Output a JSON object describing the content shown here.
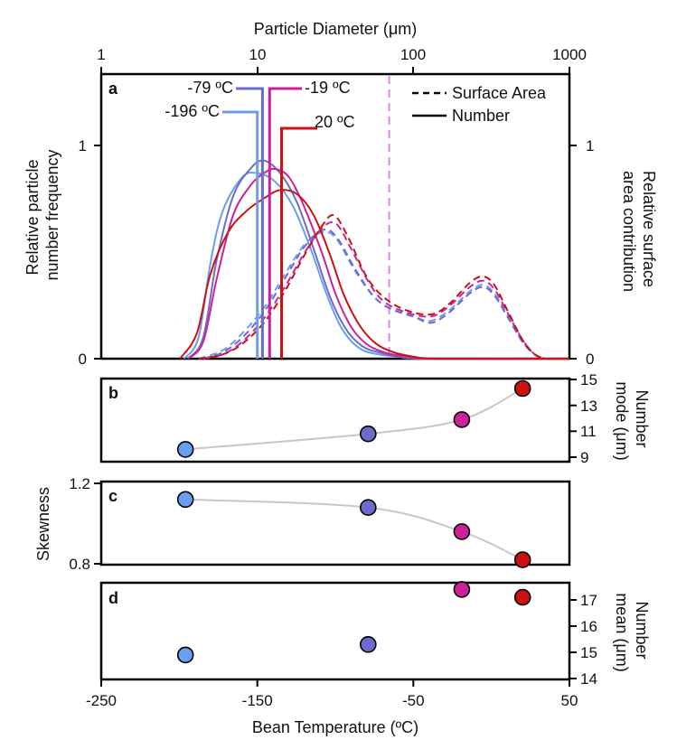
{
  "colors": {
    "c196": "#6a9ff0",
    "c79": "#6c6ccc",
    "c19": "#cc2299",
    "c20": "#cc1111",
    "fit_line": "#c8c8c8",
    "marker_line": "#dd88dd"
  },
  "chart_data": [
    {
      "panel": "a",
      "type": "line",
      "xscale": "log",
      "top_axis_label": "Particle Diameter (μm)",
      "top_ticks": [
        "1",
        "10",
        "100",
        "1000"
      ],
      "xlim": [
        1,
        1000
      ],
      "ylabel_left": "Relative particle number frequency",
      "ylabel_left_lines": [
        "Relative particle",
        "number frequency"
      ],
      "ylabel_right": "Relative surface area contribution",
      "ylabel_right_lines": [
        "Relative surface",
        "area contribution"
      ],
      "ylim": [
        0,
        1.35
      ],
      "left_ticks": [
        "0",
        "1"
      ],
      "right_ticks": [
        "0",
        "1"
      ],
      "legend": [
        {
          "label": "Surface Area",
          "style": "dashed"
        },
        {
          "label": "Number",
          "style": "solid"
        }
      ],
      "reference_line_x": 70,
      "series": [
        {
          "name": "-196 ºC",
          "color_key": "c196",
          "mode_diameter": 10,
          "number": [
            [
              3.4,
              0
            ],
            [
              4.2,
              0.1
            ],
            [
              5,
              0.45
            ],
            [
              6,
              0.7
            ],
            [
              8,
              0.86
            ],
            [
              10,
              0.88
            ],
            [
              13,
              0.84
            ],
            [
              17,
              0.72
            ],
            [
              22,
              0.52
            ],
            [
              28,
              0.3
            ],
            [
              35,
              0.14
            ],
            [
              45,
              0.05
            ],
            [
              60,
              0.02
            ],
            [
              80,
              0.01
            ],
            [
              120,
              0
            ],
            [
              1000,
              0
            ]
          ],
          "surface_area": [
            [
              4.2,
              0
            ],
            [
              6,
              0.04
            ],
            [
              8,
              0.12
            ],
            [
              11,
              0.24
            ],
            [
              15,
              0.4
            ],
            [
              20,
              0.54
            ],
            [
              26,
              0.6
            ],
            [
              32,
              0.57
            ],
            [
              42,
              0.42
            ],
            [
              55,
              0.3
            ],
            [
              70,
              0.24
            ],
            [
              100,
              0.2
            ],
            [
              130,
              0.18
            ],
            [
              170,
              0.23
            ],
            [
              230,
              0.32
            ],
            [
              280,
              0.35
            ],
            [
              330,
              0.31
            ],
            [
              400,
              0.21
            ],
            [
              500,
              0.08
            ],
            [
              600,
              0.02
            ],
            [
              700,
              0
            ]
          ]
        },
        {
          "name": "-79 ºC",
          "color_key": "c79",
          "mode_diameter": 10.8,
          "number": [
            [
              3.6,
              0
            ],
            [
              4.5,
              0.1
            ],
            [
              5.5,
              0.47
            ],
            [
              7,
              0.77
            ],
            [
              9,
              0.9
            ],
            [
              11,
              0.94
            ],
            [
              14,
              0.88
            ],
            [
              18,
              0.74
            ],
            [
              23,
              0.52
            ],
            [
              29,
              0.3
            ],
            [
              37,
              0.14
            ],
            [
              47,
              0.06
            ],
            [
              60,
              0.03
            ],
            [
              80,
              0.01
            ],
            [
              120,
              0
            ],
            [
              1000,
              0
            ]
          ],
          "surface_area": [
            [
              4.5,
              0
            ],
            [
              6,
              0.03
            ],
            [
              8,
              0.1
            ],
            [
              11,
              0.22
            ],
            [
              15,
              0.38
            ],
            [
              20,
              0.53
            ],
            [
              26,
              0.61
            ],
            [
              32,
              0.58
            ],
            [
              42,
              0.43
            ],
            [
              55,
              0.3
            ],
            [
              70,
              0.24
            ],
            [
              100,
              0.2
            ],
            [
              130,
              0.17
            ],
            [
              170,
              0.22
            ],
            [
              230,
              0.31
            ],
            [
              280,
              0.34
            ],
            [
              330,
              0.3
            ],
            [
              400,
              0.2
            ],
            [
              500,
              0.08
            ],
            [
              600,
              0.02
            ],
            [
              700,
              0
            ]
          ]
        },
        {
          "name": "-19 ºC",
          "color_key": "c19",
          "mode_diameter": 12,
          "number": [
            [
              3.6,
              0
            ],
            [
              4.5,
              0.08
            ],
            [
              5.5,
              0.38
            ],
            [
              7,
              0.68
            ],
            [
              9,
              0.82
            ],
            [
              11,
              0.88
            ],
            [
              13,
              0.9
            ],
            [
              16,
              0.86
            ],
            [
              20,
              0.72
            ],
            [
              26,
              0.5
            ],
            [
              32,
              0.3
            ],
            [
              40,
              0.15
            ],
            [
              50,
              0.07
            ],
            [
              65,
              0.03
            ],
            [
              90,
              0.01
            ],
            [
              140,
              0
            ],
            [
              1000,
              0
            ]
          ],
          "surface_area": [
            [
              4.5,
              0
            ],
            [
              6,
              0.02
            ],
            [
              8,
              0.08
            ],
            [
              11,
              0.19
            ],
            [
              15,
              0.34
            ],
            [
              20,
              0.5
            ],
            [
              26,
              0.62
            ],
            [
              32,
              0.64
            ],
            [
              40,
              0.52
            ],
            [
              52,
              0.36
            ],
            [
              65,
              0.27
            ],
            [
              90,
              0.22
            ],
            [
              130,
              0.2
            ],
            [
              170,
              0.25
            ],
            [
              230,
              0.34
            ],
            [
              280,
              0.37
            ],
            [
              330,
              0.33
            ],
            [
              400,
              0.22
            ],
            [
              500,
              0.09
            ],
            [
              600,
              0.02
            ],
            [
              700,
              0
            ]
          ]
        },
        {
          "name": "20 ºC",
          "color_key": "c20",
          "mode_diameter": 14.3,
          "number": [
            [
              3.2,
              0
            ],
            [
              4.1,
              0.12
            ],
            [
              5,
              0.4
            ],
            [
              6.5,
              0.6
            ],
            [
              8.5,
              0.7
            ],
            [
              11,
              0.76
            ],
            [
              14,
              0.8
            ],
            [
              18,
              0.78
            ],
            [
              23,
              0.68
            ],
            [
              29,
              0.5
            ],
            [
              36,
              0.3
            ],
            [
              46,
              0.15
            ],
            [
              58,
              0.07
            ],
            [
              75,
              0.03
            ],
            [
              100,
              0.01
            ],
            [
              150,
              0
            ],
            [
              1000,
              0
            ]
          ],
          "surface_area": [
            [
              4.2,
              0
            ],
            [
              6,
              0.02
            ],
            [
              8,
              0.07
            ],
            [
              11,
              0.17
            ],
            [
              15,
              0.32
            ],
            [
              20,
              0.49
            ],
            [
              26,
              0.63
            ],
            [
              31,
              0.68
            ],
            [
              38,
              0.58
            ],
            [
              50,
              0.39
            ],
            [
              65,
              0.29
            ],
            [
              90,
              0.23
            ],
            [
              130,
              0.21
            ],
            [
              170,
              0.26
            ],
            [
              230,
              0.36
            ],
            [
              280,
              0.39
            ],
            [
              330,
              0.35
            ],
            [
              400,
              0.23
            ],
            [
              500,
              0.09
            ],
            [
              600,
              0.02
            ],
            [
              700,
              0
            ]
          ]
        }
      ]
    },
    {
      "panel": "b",
      "type": "scatter",
      "xlim": [
        -250,
        50
      ],
      "ylim": [
        9,
        15
      ],
      "ylabel": "Number mode (μm)",
      "ylabel_lines": [
        "Number",
        "mode (μm)"
      ],
      "right_ticks": [
        "9",
        "11",
        "13",
        "15"
      ],
      "fit_line": true,
      "points": [
        {
          "x": -196,
          "y": 9.6,
          "color_key": "c196"
        },
        {
          "x": -79,
          "y": 10.8,
          "color_key": "c79"
        },
        {
          "x": -19,
          "y": 11.9,
          "color_key": "c19"
        },
        {
          "x": 20,
          "y": 14.3,
          "color_key": "c20"
        }
      ]
    },
    {
      "panel": "c",
      "type": "scatter",
      "xlim": [
        -250,
        50
      ],
      "ylim": [
        0.8,
        1.2
      ],
      "ylabel": "Skewness",
      "left_ticks": [
        "0.8",
        "1.2"
      ],
      "fit_line": true,
      "points": [
        {
          "x": -196,
          "y": 1.12,
          "color_key": "c196"
        },
        {
          "x": -79,
          "y": 1.08,
          "color_key": "c79"
        },
        {
          "x": -19,
          "y": 0.96,
          "color_key": "c19"
        },
        {
          "x": 20,
          "y": 0.82,
          "color_key": "c20"
        }
      ]
    },
    {
      "panel": "d",
      "type": "scatter",
      "xlim": [
        -250,
        50
      ],
      "ylim": [
        14,
        17.7
      ],
      "ylabel": "Number mean (μm)",
      "ylabel_lines": [
        "Number",
        "mean (μm)"
      ],
      "right_ticks": [
        "14",
        "15",
        "16",
        "17"
      ],
      "xlabel": "Bean Temperature (ºC)",
      "bottom_ticks": [
        "-250",
        "-150",
        "-50",
        "50"
      ],
      "points": [
        {
          "x": -196,
          "y": 14.9,
          "color_key": "c196"
        },
        {
          "x": -79,
          "y": 15.3,
          "color_key": "c79"
        },
        {
          "x": -19,
          "y": 17.4,
          "color_key": "c19"
        },
        {
          "x": 20,
          "y": 17.1,
          "color_key": "c20"
        }
      ]
    }
  ]
}
